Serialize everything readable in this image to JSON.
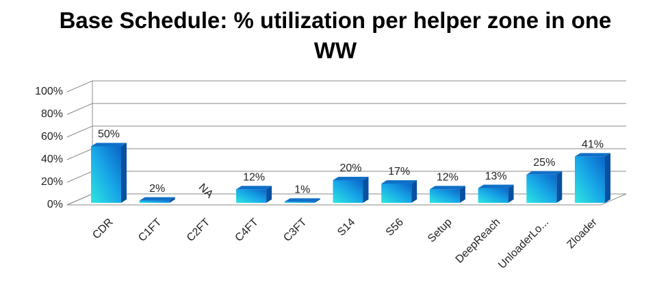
{
  "chart_data": {
    "type": "bar3d",
    "title": "Base Schedule: % utilization per helper zone in one WW",
    "categories": [
      "CDR",
      "C1FT",
      "C2FT",
      "C4FT",
      "C3FT",
      "S14",
      "S56",
      "Setup",
      "DeepReach",
      "UnloaderLo...",
      "Zloader"
    ],
    "values": [
      50,
      2,
      null,
      12,
      1,
      20,
      17,
      12,
      13,
      25,
      41
    ],
    "value_labels": [
      "50%",
      "2%",
      "NA",
      "12%",
      "1%",
      "20%",
      "17%",
      "12%",
      "13%",
      "25%",
      "41%"
    ],
    "color": "#1488d8",
    "ylim": [
      0,
      100
    ],
    "yticks": [
      {
        "value": 0,
        "label": "0%"
      },
      {
        "value": 20,
        "label": "20%"
      },
      {
        "value": 40,
        "label": "40%"
      },
      {
        "value": 60,
        "label": "60%"
      },
      {
        "value": 80,
        "label": "80%"
      },
      {
        "value": 100,
        "label": "100%"
      }
    ],
    "grid": true
  }
}
